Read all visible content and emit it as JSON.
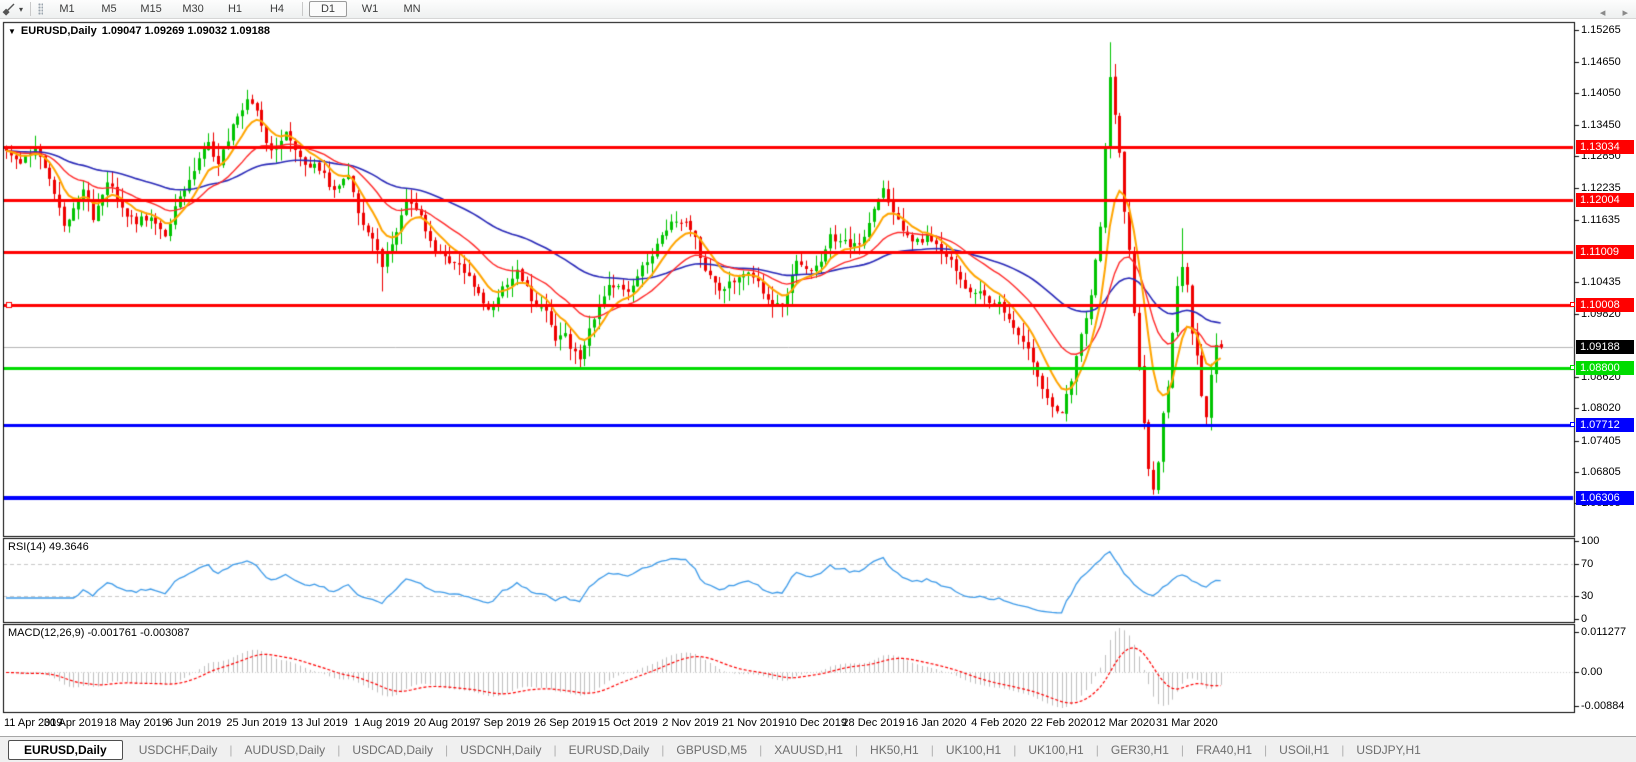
{
  "toolbar": {
    "tool_icon": "cursor-draw-tool",
    "dropdown_icon": "▾",
    "timeframes": [
      "M1",
      "M5",
      "M15",
      "M30",
      "H1",
      "H4",
      "D1",
      "W1",
      "MN"
    ],
    "selected": "D1"
  },
  "chart": {
    "dropdown_icon": "▼",
    "title_symbol": "EURUSD,Daily",
    "title_ohlc": "1.09047 1.09269 1.09032 1.09188"
  },
  "chart_data": {
    "type": "candlestick",
    "symbol": "EURUSD",
    "timeframe": "Daily",
    "ohlc_display": {
      "open": "1.09047",
      "high": "1.09269",
      "low": "1.09032",
      "close": "1.09188"
    },
    "candle_count": 253,
    "colors": {
      "bull": "#00C400",
      "bear": "#EE0000",
      "ma_fast": "#FFA500",
      "ma_mid": "#FF2A2A",
      "ma_slow": "#2A2AB8",
      "rsi_line": "#3E9BE9",
      "macd_hist": "#C0C0C0",
      "macd_signal": "#FF0000",
      "current_price_line": "#B4B4B4",
      "level_dash": "#C8C8C8",
      "hline_red": "#FF0000",
      "hline_green": "#00DC00",
      "hline_blue": "#0000FF",
      "current_price_box": "#000000"
    },
    "y_axis_ticks": [
      {
        "label": "1.15265",
        "value": 1.15265
      },
      {
        "label": "1.14650",
        "value": 1.1465
      },
      {
        "label": "1.14050",
        "value": 1.1405
      },
      {
        "label": "1.13450",
        "value": 1.1345
      },
      {
        "label": "1.12850",
        "value": 1.1285
      },
      {
        "label": "1.12235",
        "value": 1.12235
      },
      {
        "label": "1.11635",
        "value": 1.11635
      },
      {
        "label": "1.10435",
        "value": 1.10435
      },
      {
        "label": "1.09820",
        "value": 1.0982
      },
      {
        "label": "1.08620",
        "value": 1.0862
      },
      {
        "label": "1.08020",
        "value": 1.0802
      },
      {
        "label": "1.07405",
        "value": 1.07405
      },
      {
        "label": "1.06805",
        "value": 1.06805
      },
      {
        "label": "1.06205",
        "value": 1.06205
      }
    ],
    "hlines": [
      {
        "label": "1.13034",
        "value": 1.13034,
        "color": "#FF0000",
        "width": 3,
        "handles": false
      },
      {
        "label": "1.12004",
        "value": 1.12004,
        "color": "#FF0000",
        "width": 3,
        "handles": false
      },
      {
        "label": "1.11009",
        "value": 1.11009,
        "color": "#FF0000",
        "width": 3,
        "handles": false
      },
      {
        "label": "1.10008",
        "value": 1.10008,
        "color": "#FF0000",
        "width": 3,
        "handles": true
      },
      {
        "label": "1.08800",
        "value": 1.088,
        "color": "#00DC00",
        "width": 3,
        "handles": true
      },
      {
        "label": "1.07712",
        "value": 1.07712,
        "color": "#0000FF",
        "width": 3,
        "handles": true
      },
      {
        "label": "1.06306",
        "value": 1.06306,
        "color": "#0000FF",
        "width": 4,
        "handles": false
      }
    ],
    "current_price": {
      "label": "1.09188",
      "value": 1.09188
    },
    "x_axis": {
      "labels": [
        "11 Apr 2019",
        "30 Apr 2019",
        "18 May 2019",
        "6 Jun 2019",
        "25 Jun 2019",
        "13 Jul 2019",
        "1 Aug 2019",
        "20 Aug 2019",
        "7 Sep 2019",
        "26 Sep 2019",
        "15 Oct 2019",
        "2 Nov 2019",
        "21 Nov 2019",
        "10 Dec 2019",
        "28 Dec 2019",
        "16 Jan 2020",
        "4 Feb 2020",
        "22 Feb 2020",
        "12 Mar 2020",
        "31 Mar 2020"
      ],
      "candle_indices": [
        1,
        14,
        27,
        39,
        52,
        65,
        78,
        91,
        103,
        116,
        129,
        142,
        155,
        168,
        180,
        193,
        206,
        219,
        232,
        245
      ]
    },
    "price_anchors": [
      [
        0,
        1.13
      ],
      [
        3,
        1.127
      ],
      [
        6,
        1.1305
      ],
      [
        10,
        1.122
      ],
      [
        12,
        1.115
      ],
      [
        14,
        1.118
      ],
      [
        16,
        1.122
      ],
      [
        18,
        1.117
      ],
      [
        21,
        1.124
      ],
      [
        24,
        1.118
      ],
      [
        27,
        1.116
      ],
      [
        30,
        1.117
      ],
      [
        33,
        1.113
      ],
      [
        36,
        1.121
      ],
      [
        39,
        1.126
      ],
      [
        42,
        1.131
      ],
      [
        44,
        1.127
      ],
      [
        47,
        1.134
      ],
      [
        50,
        1.14
      ],
      [
        52,
        1.137
      ],
      [
        55,
        1.129
      ],
      [
        58,
        1.133
      ],
      [
        61,
        1.128
      ],
      [
        65,
        1.126
      ],
      [
        68,
        1.122
      ],
      [
        71,
        1.125
      ],
      [
        74,
        1.115
      ],
      [
        77,
        1.111
      ],
      [
        78,
        1.108
      ],
      [
        80,
        1.111
      ],
      [
        83,
        1.12
      ],
      [
        86,
        1.117
      ],
      [
        89,
        1.11
      ],
      [
        91,
        1.109
      ],
      [
        94,
        1.108
      ],
      [
        97,
        1.104
      ],
      [
        100,
        1.099
      ],
      [
        103,
        1.103
      ],
      [
        106,
        1.107
      ],
      [
        109,
        1.101
      ],
      [
        112,
        1.099
      ],
      [
        114,
        1.093
      ],
      [
        116,
        1.094
      ],
      [
        119,
        1.089
      ],
      [
        122,
        1.098
      ],
      [
        125,
        1.104
      ],
      [
        129,
        1.103
      ],
      [
        132,
        1.107
      ],
      [
        135,
        1.111
      ],
      [
        138,
        1.116
      ],
      [
        142,
        1.115
      ],
      [
        145,
        1.107
      ],
      [
        148,
        1.103
      ],
      [
        151,
        1.105
      ],
      [
        155,
        1.106
      ],
      [
        158,
        1.101
      ],
      [
        161,
        1.1
      ],
      [
        164,
        1.108
      ],
      [
        168,
        1.107
      ],
      [
        171,
        1.113
      ],
      [
        174,
        1.112
      ],
      [
        177,
        1.111
      ],
      [
        180,
        1.118
      ],
      [
        182,
        1.122
      ],
      [
        185,
        1.116
      ],
      [
        188,
        1.112
      ],
      [
        191,
        1.113
      ],
      [
        193,
        1.111
      ],
      [
        196,
        1.109
      ],
      [
        199,
        1.103
      ],
      [
        202,
        1.102
      ],
      [
        206,
        1.1
      ],
      [
        209,
        1.095
      ],
      [
        212,
        1.091
      ],
      [
        215,
        1.084
      ],
      [
        218,
        1.079
      ],
      [
        219,
        1.08
      ],
      [
        221,
        1.085
      ],
      [
        223,
        1.094
      ],
      [
        225,
        1.102
      ],
      [
        227,
        1.115
      ],
      [
        228,
        1.13
      ],
      [
        229,
        1.144
      ],
      [
        230,
        1.136
      ],
      [
        231,
        1.129
      ],
      [
        232,
        1.118
      ],
      [
        233,
        1.111
      ],
      [
        234,
        1.098
      ],
      [
        235,
        1.088
      ],
      [
        236,
        1.077
      ],
      [
        237,
        1.069
      ],
      [
        238,
        1.065
      ],
      [
        239,
        1.07
      ],
      [
        240,
        1.08
      ],
      [
        241,
        1.085
      ],
      [
        242,
        1.095
      ],
      [
        243,
        1.103
      ],
      [
        244,
        1.108
      ],
      [
        245,
        1.104
      ],
      [
        246,
        1.095
      ],
      [
        247,
        1.09
      ],
      [
        248,
        1.083
      ],
      [
        249,
        1.079
      ],
      [
        250,
        1.087
      ],
      [
        251,
        1.093
      ],
      [
        252,
        1.09188
      ]
    ],
    "wick_extremes": {
      "50": {
        "high": 1.1412
      },
      "78": {
        "low": 1.1026
      },
      "119": {
        "low": 1.0878
      },
      "229": {
        "high": 1.1503
      },
      "238": {
        "low": 1.0637
      },
      "244": {
        "high": 1.1147
      },
      "249": {
        "low": 1.0768
      }
    },
    "rsi": {
      "label": "RSI(14) 49.3646",
      "period": 14,
      "value": 49.3646,
      "levels": [
        70,
        30
      ],
      "axis_ticks": [
        {
          "label": "100",
          "value": 100
        },
        {
          "label": "70",
          "value": 70
        },
        {
          "label": "30",
          "value": 30
        },
        {
          "label": "0",
          "value": 0
        }
      ]
    },
    "macd": {
      "label": "MACD(12,26,9) -0.001761 -0.003087",
      "params": "12,26,9",
      "main_value": -0.001761,
      "signal_value": -0.003087,
      "axis_ticks": [
        "0.011277",
        "0.00",
        "-0.00884"
      ]
    }
  },
  "tabs": {
    "items": [
      "EURUSD,Daily",
      "USDCHF,Daily",
      "AUDUSD,Daily",
      "USDCAD,Daily",
      "USDCNH,Daily",
      "EURUSD,Daily",
      "GBPUSD,M5",
      "XAUUSD,H1",
      "HK50,H1",
      "UK100,H1",
      "UK100,H1",
      "GER30,H1",
      "FRA40,H1",
      "USOil,H1",
      "USDJPY,H1"
    ],
    "active_index": 0,
    "scroll_left_icon": "◂",
    "scroll_right_icon": "▸"
  }
}
